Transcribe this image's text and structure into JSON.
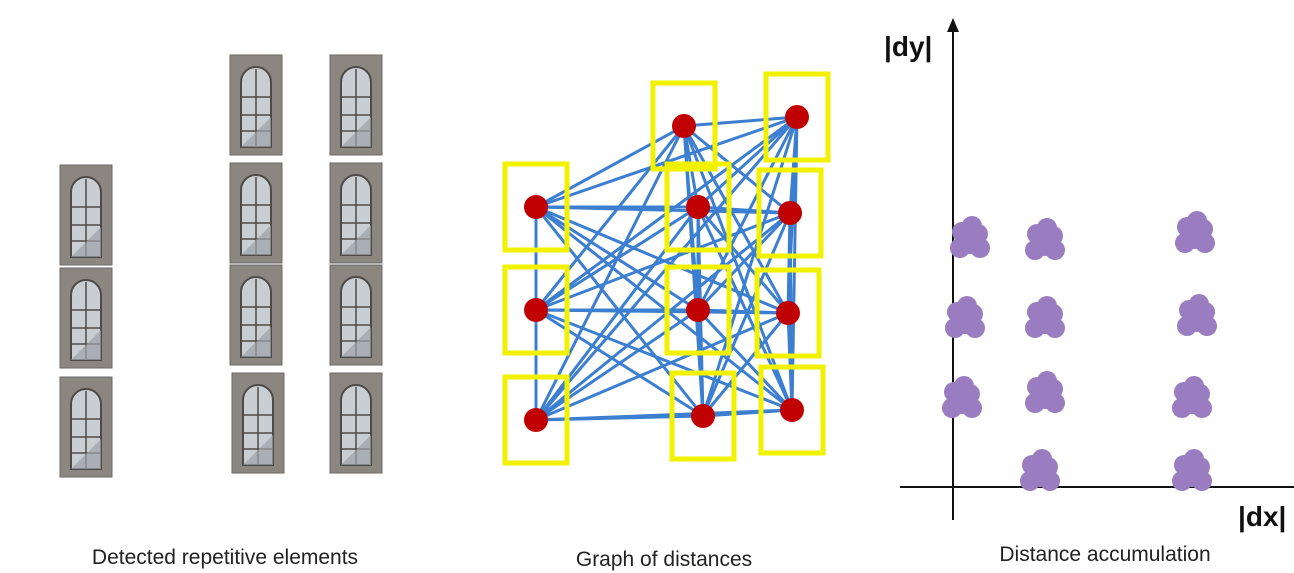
{
  "panels": [
    {
      "caption": "Detected repetitive elements"
    },
    {
      "caption": "Graph of distances"
    },
    {
      "caption": "Distance accumulation",
      "y_axis_label": "|dy|",
      "x_axis_label": "|dx|"
    }
  ]
}
